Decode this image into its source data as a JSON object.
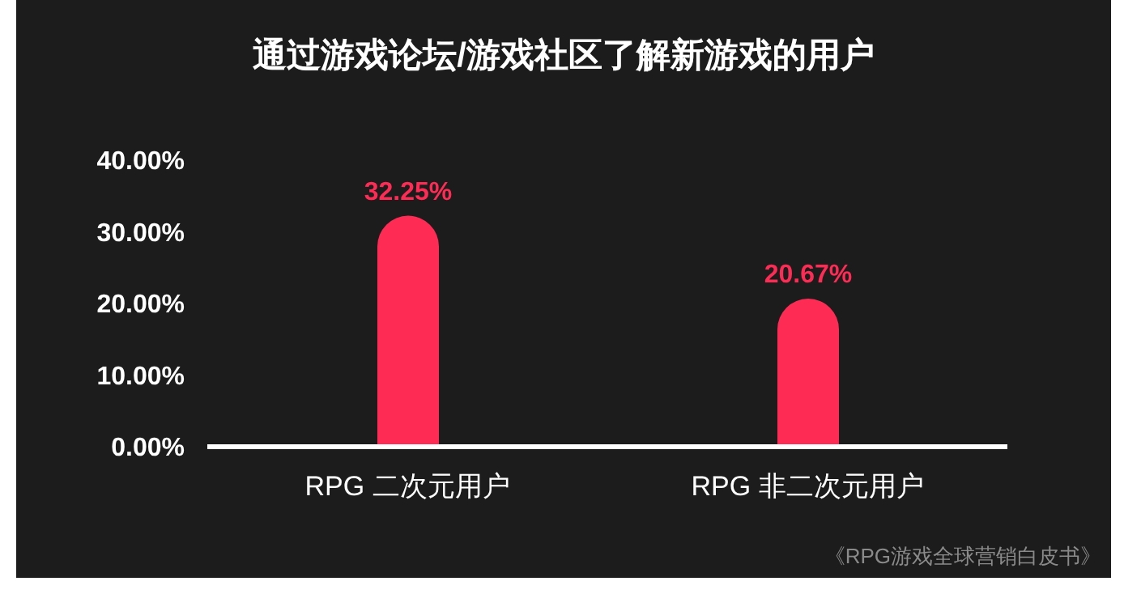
{
  "chart_data": {
    "type": "bar",
    "title": "通过游戏论坛/游戏社区了解新游戏的用户",
    "categories": [
      "RPG 二次元用户",
      "RPG 非二次元用户"
    ],
    "values": [
      32.25,
      20.67
    ],
    "color": "#fe2c55",
    "value_labels": [
      "32.25%",
      "20.67%"
    ],
    "ylim": [
      0,
      40
    ],
    "yticks": [
      {
        "value": 0,
        "label": "0.00%"
      },
      {
        "value": 10,
        "label": "10.00%"
      },
      {
        "value": 20,
        "label": "20.00%"
      },
      {
        "value": 30,
        "label": "30.00%"
      },
      {
        "value": 40,
        "label": "40.00%"
      }
    ],
    "annotations": [
      "《RPG游戏全球营销白皮书》"
    ]
  }
}
